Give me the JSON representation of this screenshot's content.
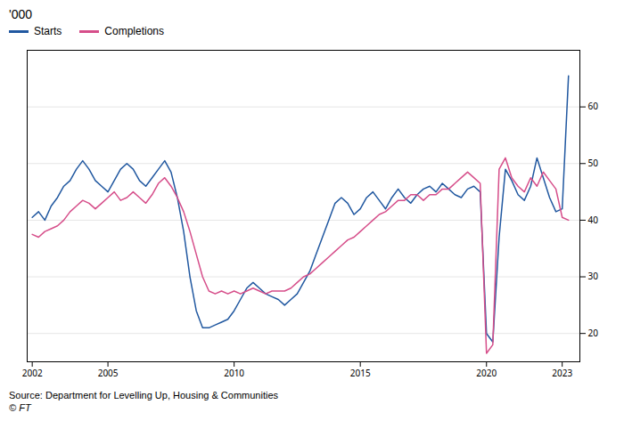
{
  "chart_data": {
    "type": "line",
    "title": "'000",
    "annotations": [
      "Source: Department for Levelling Up, Housing & Communities",
      "© FT"
    ],
    "x": [
      2002,
      2002.25,
      2002.5,
      2002.75,
      2003,
      2003.25,
      2003.5,
      2003.75,
      2004,
      2004.25,
      2004.5,
      2004.75,
      2005,
      2005.25,
      2005.5,
      2005.75,
      2006,
      2006.25,
      2006.5,
      2006.75,
      2007,
      2007.25,
      2007.5,
      2007.75,
      2008,
      2008.25,
      2008.5,
      2008.75,
      2009,
      2009.25,
      2009.5,
      2009.75,
      2010,
      2010.25,
      2010.5,
      2010.75,
      2011,
      2011.25,
      2011.5,
      2011.75,
      2012,
      2012.25,
      2012.5,
      2012.75,
      2013,
      2013.25,
      2013.5,
      2013.75,
      2014,
      2014.25,
      2014.5,
      2014.75,
      2015,
      2015.25,
      2015.5,
      2015.75,
      2016,
      2016.25,
      2016.5,
      2016.75,
      2017,
      2017.25,
      2017.5,
      2017.75,
      2018,
      2018.25,
      2018.5,
      2018.75,
      2019,
      2019.25,
      2019.5,
      2019.75,
      2020,
      2020.25,
      2020.5,
      2020.75,
      2021,
      2021.25,
      2021.5,
      2021.75,
      2022,
      2022.25,
      2022.5,
      2022.75,
      2023,
      2023.25
    ],
    "series": [
      {
        "name": "Starts",
        "color": "#2158a0",
        "values": [
          40.5,
          41.5,
          40.0,
          42.5,
          44.0,
          46.0,
          47.0,
          49.0,
          50.5,
          49.0,
          47.0,
          46.0,
          45.0,
          47.0,
          49.0,
          50.0,
          49.0,
          47.0,
          46.0,
          47.5,
          49.0,
          50.5,
          48.5,
          44.0,
          38.0,
          30.0,
          24.0,
          21.0,
          21.0,
          21.5,
          22.0,
          22.5,
          24.0,
          26.0,
          28.0,
          29.0,
          28.0,
          27.0,
          26.5,
          26.0,
          25.0,
          26.0,
          27.0,
          29.0,
          31.0,
          34.0,
          37.0,
          40.0,
          43.0,
          44.0,
          43.0,
          41.0,
          42.0,
          44.0,
          45.0,
          43.5,
          42.0,
          44.0,
          45.5,
          44.0,
          43.0,
          44.5,
          45.5,
          46.0,
          45.0,
          46.5,
          45.5,
          44.5,
          44.0,
          45.5,
          46.0,
          45.0,
          20.0,
          18.5,
          37.0,
          49.0,
          47.0,
          44.5,
          43.5,
          46.0,
          51.0,
          47.5,
          44.0,
          41.5,
          42.0,
          65.5
        ]
      },
      {
        "name": "Completions",
        "color": "#d64e8a",
        "values": [
          37.5,
          37.0,
          38.0,
          38.5,
          39.0,
          40.0,
          41.5,
          42.5,
          43.5,
          43.0,
          42.0,
          43.0,
          44.0,
          45.0,
          43.5,
          44.0,
          45.0,
          44.0,
          43.0,
          44.5,
          46.5,
          47.5,
          46.0,
          44.0,
          41.5,
          38.0,
          34.0,
          30.0,
          27.5,
          27.0,
          27.5,
          27.0,
          27.5,
          27.0,
          27.5,
          28.0,
          27.5,
          27.0,
          27.5,
          27.5,
          27.5,
          28.0,
          29.0,
          30.0,
          30.5,
          31.5,
          32.5,
          33.5,
          34.5,
          35.5,
          36.5,
          37.0,
          38.0,
          39.0,
          40.0,
          41.0,
          41.5,
          42.5,
          43.5,
          43.5,
          44.5,
          44.5,
          43.5,
          44.5,
          44.5,
          45.5,
          45.5,
          46.5,
          47.5,
          48.5,
          47.5,
          46.5,
          16.5,
          18.0,
          49.0,
          51.0,
          47.5,
          46.0,
          45.0,
          47.5,
          46.0,
          48.5,
          47.0,
          45.5,
          40.5,
          40.0
        ]
      }
    ],
    "xlim": [
      2001.8,
      2023.7
    ],
    "xticks": [
      2002,
      2005,
      2010,
      2015,
      2020,
      2023
    ],
    "ylim": [
      15,
      70
    ],
    "yticks": [
      20,
      30,
      40,
      50,
      60
    ],
    "grid": "y",
    "legend": "top"
  }
}
